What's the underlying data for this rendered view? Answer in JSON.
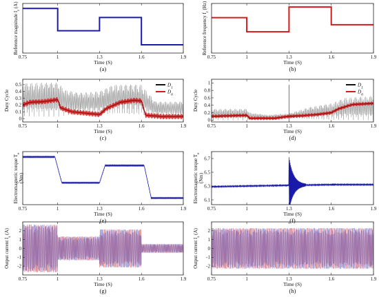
{
  "colors": {
    "blue": "#1a1aa8",
    "red": "#d41a1a",
    "gray": "#9a9a9a",
    "darkred": "#7a0000",
    "black": "#111111",
    "pink": "#e8b4c8",
    "lavender": "#b8b8e0"
  },
  "chart_data": [
    {
      "id": "a",
      "type": "line",
      "caption": "(a)",
      "xlabel": "Time (S)",
      "ylabel": "Reference magnitude I",
      "ylabel_sub": "r",
      "ylabel_unit": "(A)",
      "x_ticks": [
        "0.75",
        "1",
        "1.3",
        "1.6",
        "1.9"
      ],
      "y_ticks": [],
      "xlim": [
        0.75,
        1.9
      ],
      "ylim": [
        0,
        3
      ],
      "series": [
        {
          "points": [
            [
              0.75,
              2.7
            ],
            [
              1.0,
              2.7
            ],
            [
              1.0,
              1.35
            ],
            [
              1.3,
              1.35
            ],
            [
              1.3,
              2.15
            ],
            [
              1.6,
              2.15
            ],
            [
              1.6,
              0.5
            ],
            [
              1.9,
              0.5
            ]
          ]
        }
      ]
    },
    {
      "id": "b",
      "type": "line",
      "caption": "(b)",
      "xlabel": "Time (S)",
      "ylabel": "Reference frequency f",
      "ylabel_sub": "r",
      "ylabel_unit": "(Hz)",
      "x_ticks": [
        "0.75",
        "1",
        "1.3",
        "1.6",
        "1.9"
      ],
      "y_ticks": [],
      "xlim": [
        0.75,
        1.9
      ],
      "ylim": [
        0,
        70
      ],
      "series": [
        {
          "points": [
            [
              0.75,
              50
            ],
            [
              1.0,
              50
            ],
            [
              1.0,
              30
            ],
            [
              1.3,
              30
            ],
            [
              1.3,
              65
            ],
            [
              1.6,
              65
            ],
            [
              1.6,
              40
            ],
            [
              1.9,
              40
            ]
          ]
        }
      ]
    },
    {
      "id": "c",
      "type": "line",
      "caption": "(c)",
      "xlabel": "Time (S)",
      "ylabel": "Duty Cycle",
      "x_ticks": [
        "0.75",
        "1",
        "1.3",
        "1.6",
        "1.9"
      ],
      "y_ticks": [
        "0",
        "0.1",
        "0.2",
        "0.3",
        "0.4",
        "0.5"
      ],
      "xlim": [
        0.75,
        1.9
      ],
      "ylim": [
        -0.05,
        0.58
      ],
      "legend_position": "top-right",
      "series": [
        {
          "name": "D",
          "name_sub": "1",
          "envelope": [
            [
              0.75,
              0.03,
              0.52
            ],
            [
              0.9,
              0.03,
              0.53
            ],
            [
              1.0,
              0.03,
              0.53
            ],
            [
              1.06,
              0.05,
              0.42
            ],
            [
              1.15,
              0.06,
              0.38
            ],
            [
              1.3,
              0.05,
              0.4
            ],
            [
              1.4,
              0.06,
              0.5
            ],
            [
              1.6,
              0.05,
              0.5
            ],
            [
              1.7,
              0.03,
              0.25
            ],
            [
              1.9,
              0.03,
              0.25
            ]
          ]
        },
        {
          "name": "D",
          "name_sub": "6",
          "points": [
            [
              0.75,
              0.2
            ],
            [
              0.8,
              0.24
            ],
            [
              0.9,
              0.25
            ],
            [
              1.0,
              0.28
            ],
            [
              1.02,
              0.16
            ],
            [
              1.1,
              0.1
            ],
            [
              1.2,
              0.08
            ],
            [
              1.3,
              0.06
            ],
            [
              1.35,
              0.15
            ],
            [
              1.45,
              0.24
            ],
            [
              1.55,
              0.27
            ],
            [
              1.6,
              0.26
            ],
            [
              1.63,
              0.05
            ],
            [
              1.75,
              0.03
            ],
            [
              1.9,
              0.03
            ]
          ]
        }
      ]
    },
    {
      "id": "d",
      "type": "line",
      "caption": "(d)",
      "xlabel": "Time (S)",
      "ylabel": "Duty Cycle",
      "x_ticks": [
        "0.75",
        "1",
        "1.3",
        "1.6",
        "1.9"
      ],
      "y_ticks": [
        "0",
        "0.2",
        "0.4",
        "0.6",
        "0.8",
        "1"
      ],
      "xlim": [
        0.75,
        1.9
      ],
      "ylim": [
        -0.05,
        1.1
      ],
      "legend_position": "top-right",
      "series": [
        {
          "name": "D",
          "name_sub": "1",
          "envelope": [
            [
              0.75,
              0.0,
              0.3
            ],
            [
              1.0,
              0.0,
              0.3
            ],
            [
              1.02,
              0.02,
              0.2
            ],
            [
              1.15,
              0.04,
              0.14
            ],
            [
              1.3,
              0.05,
              0.18
            ],
            [
              1.45,
              0.02,
              0.35
            ],
            [
              1.6,
              0.0,
              0.45
            ],
            [
              1.7,
              0.0,
              0.6
            ],
            [
              1.9,
              0.0,
              0.65
            ]
          ]
        },
        {
          "name": "D",
          "name_sub": "6",
          "points": [
            [
              0.75,
              0.1
            ],
            [
              0.9,
              0.12
            ],
            [
              1.0,
              0.13
            ],
            [
              1.02,
              0.05
            ],
            [
              1.2,
              0.05
            ],
            [
              1.3,
              0.1
            ],
            [
              1.4,
              0.12
            ],
            [
              1.5,
              0.15
            ],
            [
              1.6,
              0.2
            ],
            [
              1.65,
              0.3
            ],
            [
              1.75,
              0.42
            ],
            [
              1.9,
              0.45
            ]
          ]
        }
      ]
    },
    {
      "id": "e",
      "type": "line",
      "caption": "(e)",
      "xlabel": "Time (S)",
      "ylabel": "Electromagnetic torque T",
      "ylabel_sub": "e",
      "ylabel_unit": "(Nm)",
      "x_ticks": [
        "0.75",
        "1",
        "1.3",
        "1.6",
        "1.9"
      ],
      "y_ticks": [],
      "xlim": [
        0.75,
        1.9
      ],
      "ylim": [
        0,
        8
      ],
      "series": [
        {
          "points": [
            [
              0.75,
              7.2
            ],
            [
              0.98,
              7.2
            ],
            [
              1.03,
              3.3
            ],
            [
              1.3,
              3.3
            ],
            [
              1.34,
              5.9
            ],
            [
              1.62,
              5.9
            ],
            [
              1.67,
              1.0
            ],
            [
              1.9,
              1.0
            ]
          ]
        }
      ]
    },
    {
      "id": "f",
      "type": "line",
      "caption": "(f)",
      "xlabel": "Time (S)",
      "ylabel": "Electromagnetic torque T",
      "ylabel_sub": "e",
      "ylabel_unit": "(Nm)",
      "x_ticks": [
        "0.75",
        "1",
        "1.3",
        "1.6",
        "1.9"
      ],
      "y_ticks": [
        "6.1",
        "6.3",
        "6.5",
        "6.7"
      ],
      "xlim": [
        0.75,
        1.9
      ],
      "ylim": [
        6.03,
        6.8
      ],
      "series": [
        {
          "points": [
            [
              0.75,
              6.29
            ],
            [
              1.0,
              6.3
            ],
            [
              1.3,
              6.31
            ],
            [
              1.6,
              6.32
            ],
            [
              1.9,
              6.32
            ]
          ]
        }
      ]
    },
    {
      "id": "g",
      "type": "line",
      "caption": "(g)",
      "xlabel": "Time (S)",
      "ylabel": "Output current I",
      "ylabel_sub": "s",
      "ylabel_unit": "(A)",
      "x_ticks": [
        "0.75",
        "1",
        "1.3",
        "1.6",
        "1.9"
      ],
      "y_ticks": [
        "-2",
        "-1",
        "0",
        "1",
        "2"
      ],
      "xlim": [
        0.75,
        1.9
      ],
      "ylim": [
        -3,
        3
      ],
      "series": [
        {
          "amplitude": [
            [
              0.75,
              2.7
            ],
            [
              1.0,
              2.7
            ],
            [
              1.0,
              1.35
            ],
            [
              1.3,
              1.35
            ],
            [
              1.3,
              2.15
            ],
            [
              1.6,
              2.15
            ],
            [
              1.6,
              0.5
            ],
            [
              1.9,
              0.5
            ]
          ]
        }
      ]
    },
    {
      "id": "h",
      "type": "line",
      "caption": "(h)",
      "xlabel": "Time (S)",
      "ylabel": "Output current I",
      "ylabel_sub": "s",
      "ylabel_unit": "(A)",
      "x_ticks": [
        "0.75",
        "1",
        "1.3",
        "1.6",
        "1.9"
      ],
      "y_ticks": [
        "-2",
        "-1",
        "0",
        "1",
        "2"
      ],
      "xlim": [
        0.75,
        1.9
      ],
      "ylim": [
        -3,
        3
      ],
      "series": [
        {
          "amplitude": [
            [
              0.75,
              2.3
            ],
            [
              1.9,
              2.3
            ]
          ]
        }
      ]
    }
  ]
}
